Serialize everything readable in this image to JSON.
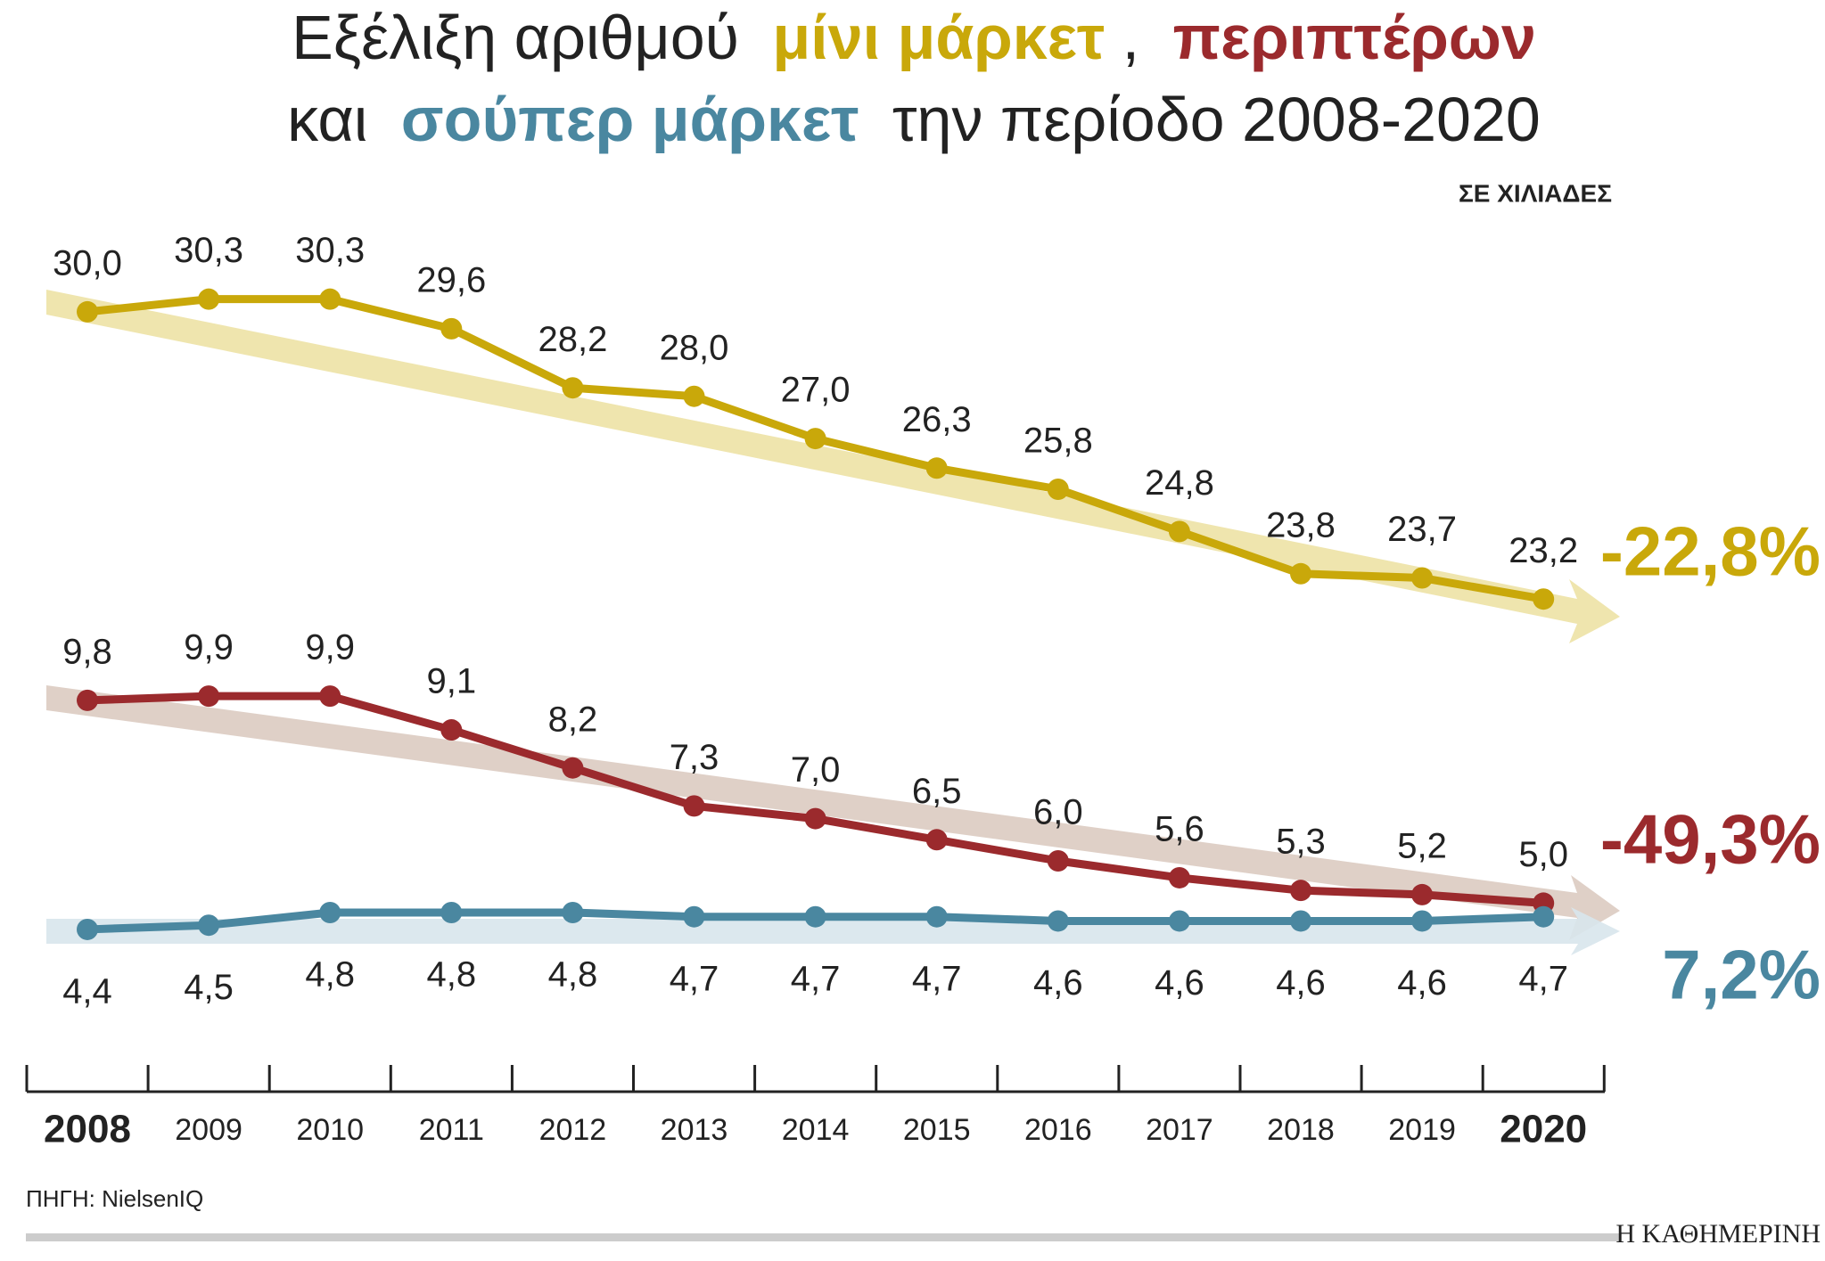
{
  "chart_data": {
    "type": "line",
    "title_parts": [
      "Εξέλιξη αριθμού",
      ",",
      "και",
      "την περίοδο 2008-2020"
    ],
    "subtitle": "ΣΕ ΧΙΛΙΑΔΕΣ",
    "categories": [
      "2008",
      "2009",
      "2010",
      "2011",
      "2012",
      "2013",
      "2014",
      "2015",
      "2016",
      "2017",
      "2018",
      "2019",
      "2020"
    ],
    "series": [
      {
        "name": "μίνι μάρκετ",
        "color": "#c9a80a",
        "ylim": [
          22,
          31
        ],
        "change_label": "-22,8%",
        "values": [
          30.0,
          30.3,
          30.3,
          29.6,
          28.2,
          28.0,
          27.0,
          26.3,
          25.8,
          24.8,
          23.8,
          23.7,
          23.2
        ],
        "value_labels": [
          "30,0",
          "30,3",
          "30,3",
          "29,6",
          "28,2",
          "28,0",
          "27,0",
          "26,3",
          "25,8",
          "24,8",
          "23,8",
          "23,7",
          "23,2"
        ]
      },
      {
        "name": "περιπτέρων",
        "color": "#9b2a2d",
        "ylim": [
          4,
          11
        ],
        "change_label": "-49,3%",
        "values": [
          9.8,
          9.9,
          9.9,
          9.1,
          8.2,
          7.3,
          7.0,
          6.5,
          6.0,
          5.6,
          5.3,
          5.2,
          5.0
        ],
        "value_labels": [
          "9,8",
          "9,9",
          "9,9",
          "9,1",
          "8,2",
          "7,3",
          "7,0",
          "6,5",
          "6,0",
          "5,6",
          "5,3",
          "5,2",
          "5,0"
        ]
      },
      {
        "name": "σούπερ μάρκετ",
        "color": "#4a87a0",
        "ylim": [
          4,
          5
        ],
        "change_label": "7,2%",
        "values": [
          4.4,
          4.5,
          4.8,
          4.8,
          4.8,
          4.7,
          4.7,
          4.7,
          4.6,
          4.6,
          4.6,
          4.6,
          4.7
        ],
        "value_labels": [
          "4,4",
          "4,5",
          "4,8",
          "4,8",
          "4,8",
          "4,7",
          "4,7",
          "4,7",
          "4,6",
          "4,6",
          "4,6",
          "4,6",
          "4,7"
        ]
      }
    ],
    "source": "ΠΗΓΗ: NielsenIQ",
    "brand": "Η ΚΑΘΗΜΕΡΙΝΗ"
  }
}
